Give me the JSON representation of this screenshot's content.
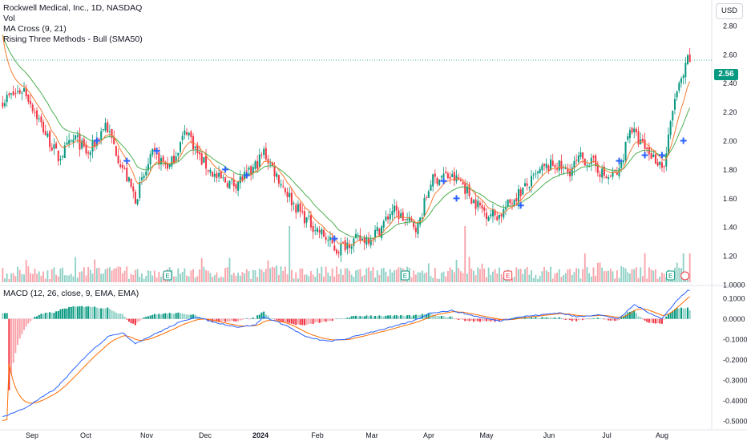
{
  "legend": {
    "title": "Rockwell Medical, Inc., 1D, NASDAQ",
    "vol": "Vol",
    "ma_cross": "MA Cross (9, 21)",
    "pattern": "Rising Three Methods - Bull (SMA50)",
    "macd": "MACD (12, 26, close, 9, EMA, EMA)"
  },
  "price_axis": {
    "currency": "USD",
    "last_price": "2.56"
  },
  "colors": {
    "up": "#089981",
    "down": "#f23645",
    "ma_fast": "#f57c33",
    "ma_slow": "#4caf50",
    "macd": "#2962ff",
    "signal": "#ff6d00",
    "cross_marker": "#2962ff",
    "earnings": "#089981",
    "dividend": "#f23645"
  },
  "chart_data": [
    {
      "type": "candlestick",
      "title": "Rockwell Medical, Inc., 1D, NASDAQ",
      "x_tick_labels": [
        "Sep",
        "Oct",
        "Nov",
        "Dec",
        "2024",
        "Feb",
        "Mar",
        "Apr",
        "May",
        "Jun",
        "Jul",
        "Aug"
      ],
      "y_ticks": [
        "2.80",
        "2.60",
        "2.40",
        "2.20",
        "2.00",
        "1.80",
        "1.60",
        "1.40",
        "1.20",
        "1.0000"
      ],
      "ylim": [
        1.0,
        2.9
      ],
      "close_anchors": [
        [
          0,
          2.28
        ],
        [
          10,
          2.36
        ],
        [
          20,
          2.05
        ],
        [
          26,
          1.88
        ],
        [
          34,
          2.02
        ],
        [
          40,
          1.9
        ],
        [
          48,
          2.12
        ],
        [
          55,
          1.85
        ],
        [
          62,
          1.6
        ],
        [
          70,
          1.9
        ],
        [
          78,
          1.82
        ],
        [
          86,
          2.08
        ],
        [
          92,
          1.88
        ],
        [
          100,
          1.74
        ],
        [
          108,
          1.7
        ],
        [
          116,
          1.78
        ],
        [
          122,
          1.92
        ],
        [
          128,
          1.76
        ],
        [
          136,
          1.56
        ],
        [
          142,
          1.45
        ],
        [
          150,
          1.34
        ],
        [
          156,
          1.24
        ],
        [
          162,
          1.3
        ],
        [
          170,
          1.32
        ],
        [
          176,
          1.38
        ],
        [
          182,
          1.52
        ],
        [
          188,
          1.45
        ],
        [
          194,
          1.4
        ],
        [
          200,
          1.72
        ],
        [
          206,
          1.76
        ],
        [
          214,
          1.72
        ],
        [
          220,
          1.58
        ],
        [
          226,
          1.5
        ],
        [
          232,
          1.48
        ],
        [
          240,
          1.62
        ],
        [
          246,
          1.7
        ],
        [
          252,
          1.8
        ],
        [
          258,
          1.84
        ],
        [
          264,
          1.78
        ],
        [
          270,
          1.88
        ],
        [
          276,
          1.84
        ],
        [
          282,
          1.74
        ],
        [
          288,
          1.78
        ],
        [
          293,
          2.1
        ],
        [
          297,
          2.0
        ],
        [
          303,
          1.9
        ],
        [
          309,
          1.82
        ],
        [
          314,
          2.3
        ],
        [
          318,
          2.44
        ],
        [
          320,
          2.56
        ]
      ],
      "series": [
        {
          "name": "MA Cross (9, 21)",
          "kind": "ema_9"
        },
        {
          "name": "MA Cross (9, 21)",
          "kind": "ema_21"
        }
      ]
    },
    {
      "type": "bar",
      "title": "Vol",
      "note": "daily volume histogram, colored by candle direction"
    },
    {
      "type": "line",
      "title": "MACD (12, 26, close, 9, EMA, EMA)",
      "y_ticks": [
        "0.1000",
        "0.0000",
        "-0.1000",
        "-0.2000",
        "-0.3000",
        "-0.4000",
        "-0.5000"
      ],
      "ylim": [
        -0.52,
        0.14
      ],
      "macd_anchors": [
        [
          0,
          -0.48
        ],
        [
          10,
          -0.44
        ],
        [
          25,
          -0.34
        ],
        [
          40,
          -0.17
        ],
        [
          50,
          -0.08
        ],
        [
          56,
          -0.07
        ],
        [
          62,
          -0.12
        ],
        [
          72,
          -0.07
        ],
        [
          82,
          -0.02
        ],
        [
          90,
          0.01
        ],
        [
          100,
          -0.02
        ],
        [
          110,
          -0.04
        ],
        [
          118,
          -0.03
        ],
        [
          122,
          0.01
        ],
        [
          132,
          -0.03
        ],
        [
          142,
          -0.09
        ],
        [
          152,
          -0.11
        ],
        [
          160,
          -0.1
        ],
        [
          170,
          -0.07
        ],
        [
          182,
          -0.04
        ],
        [
          192,
          -0.01
        ],
        [
          200,
          0.03
        ],
        [
          210,
          0.04
        ],
        [
          222,
          0.01
        ],
        [
          232,
          -0.01
        ],
        [
          242,
          0.01
        ],
        [
          252,
          0.02
        ],
        [
          260,
          0.03
        ],
        [
          268,
          0.01
        ],
        [
          278,
          0.02
        ],
        [
          288,
          0.0
        ],
        [
          295,
          0.07
        ],
        [
          302,
          0.03
        ],
        [
          308,
          0.0
        ],
        [
          314,
          0.08
        ],
        [
          320,
          0.14
        ]
      ],
      "series": [
        {
          "name": "MACD",
          "kind": "macd"
        },
        {
          "name": "Signal",
          "kind": "signal"
        },
        {
          "name": "Histogram",
          "kind": "histogram"
        }
      ]
    }
  ]
}
